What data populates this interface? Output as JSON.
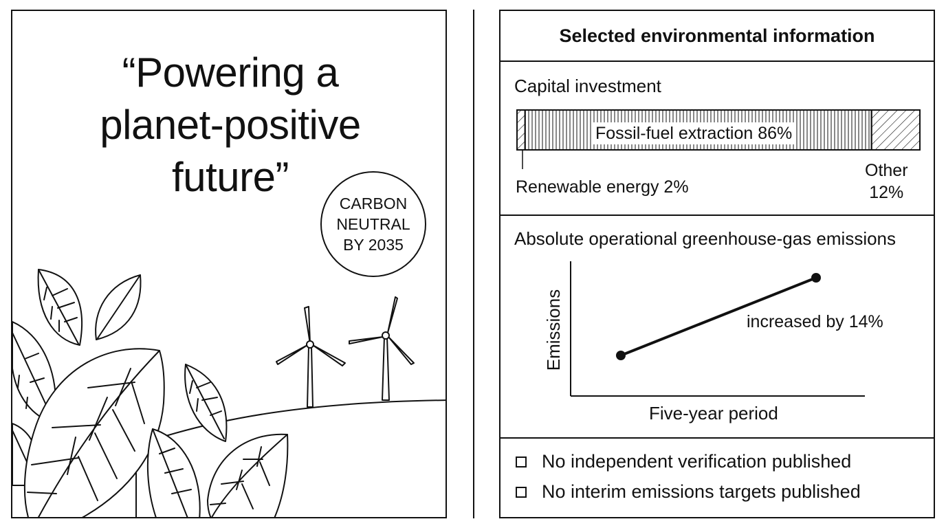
{
  "poster": {
    "slogan_lines": [
      "“Powering a",
      "planet-positive",
      "future”"
    ],
    "badge_lines": [
      "CARBON",
      "NEUTRAL",
      "BY 2035"
    ]
  },
  "info": {
    "title": "Selected environmental information",
    "capital": {
      "label": "Capital investment",
      "segments": [
        {
          "name": "Renewable energy",
          "percent": 2,
          "label": "Renewable energy 2%"
        },
        {
          "name": "Fossil-fuel extraction",
          "percent": 86,
          "label": "Fossil-fuel extraction 86%"
        },
        {
          "name": "Other",
          "percent": 12,
          "label_lines": [
            "Other",
            "12%"
          ]
        }
      ]
    },
    "emissions": {
      "label": "Absolute operational greenhouse-gas emissions",
      "ylabel": "Emissions",
      "xlabel": "Five-year period",
      "annotation": "increased by 14%"
    },
    "flags": [
      "No independent verification published",
      "No interim emissions targets published"
    ]
  },
  "chart_data": [
    {
      "type": "bar",
      "title": "Capital investment",
      "categories": [
        "Renewable energy",
        "Fossil-fuel extraction",
        "Other"
      ],
      "values": [
        2,
        86,
        12
      ],
      "stacked": true,
      "unit": "%"
    },
    {
      "type": "line",
      "title": "Absolute operational greenhouse-gas emissions",
      "xlabel": "Five-year period",
      "ylabel": "Emissions",
      "points": 2,
      "change_percent": 14,
      "annotation": "increased by 14%"
    }
  ]
}
